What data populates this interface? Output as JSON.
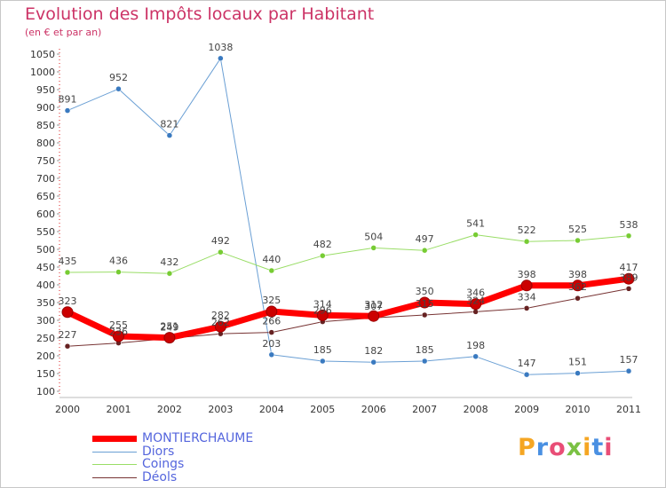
{
  "header": {
    "title": "Evolution des Impôts locaux par Habitant",
    "subtitle": "(en € et par an)"
  },
  "brand": {
    "text": "Proxiti",
    "colors": [
      "#f5a623",
      "#4a90e2",
      "#e94e77",
      "#7ac143",
      "#f5a623",
      "#4a90e2",
      "#e94e77"
    ]
  },
  "chart_data": {
    "type": "line",
    "title": "Evolution des Impôts locaux par Habitant",
    "subtitle": "(en € et par an)",
    "xlabel": "",
    "ylabel": "",
    "ylim": [
      100,
      1050
    ],
    "ytick_step": 50,
    "grid": false,
    "legend_position": "bottom-left",
    "categories": [
      "2000",
      "2001",
      "2002",
      "2003",
      "2004",
      "2005",
      "2006",
      "2007",
      "2008",
      "2009",
      "2010",
      "2011"
    ],
    "series": [
      {
        "name": "MONTIERCHAUME",
        "color": "#ff0000",
        "marker_color": "#cc0000",
        "width": 7,
        "values": [
          323,
          255,
          251,
          282,
          325,
          314,
          312,
          350,
          346,
          398,
          398,
          417
        ],
        "labels": [
          "323",
          "255",
          "251",
          "282",
          "325",
          "314",
          "312",
          "350",
          "346",
          "398",
          "398",
          "417"
        ]
      },
      {
        "name": "Diors",
        "color": "#6a9fd4",
        "marker_color": "#3a7ac0",
        "width": 1,
        "values": [
          891,
          952,
          821,
          1038,
          203,
          185,
          182,
          185,
          198,
          147,
          151,
          157
        ],
        "labels": [
          "891",
          "952",
          "821",
          "1038",
          "203",
          "185",
          "182",
          "185",
          "198",
          "147",
          "151",
          "157"
        ]
      },
      {
        "name": "Coings",
        "color": "#99dd66",
        "marker_color": "#77cc33",
        "width": 1,
        "values": [
          435,
          436,
          432,
          492,
          440,
          482,
          504,
          497,
          541,
          522,
          525,
          538
        ],
        "labels": [
          "435",
          "436",
          "432",
          "492",
          "440",
          "482",
          "504",
          "497",
          "541",
          "522",
          "525",
          "538"
        ]
      },
      {
        "name": "Déols",
        "color": "#773333",
        "marker_color": "#662222",
        "width": 1,
        "values": [
          227,
          236,
          249,
          262,
          266,
          296,
          307,
          315,
          324,
          334,
          362,
          389
        ],
        "labels": [
          "227",
          "236",
          "249",
          "262",
          "266",
          "296",
          "307",
          "315",
          "324",
          "334",
          "362",
          "389"
        ]
      }
    ]
  }
}
